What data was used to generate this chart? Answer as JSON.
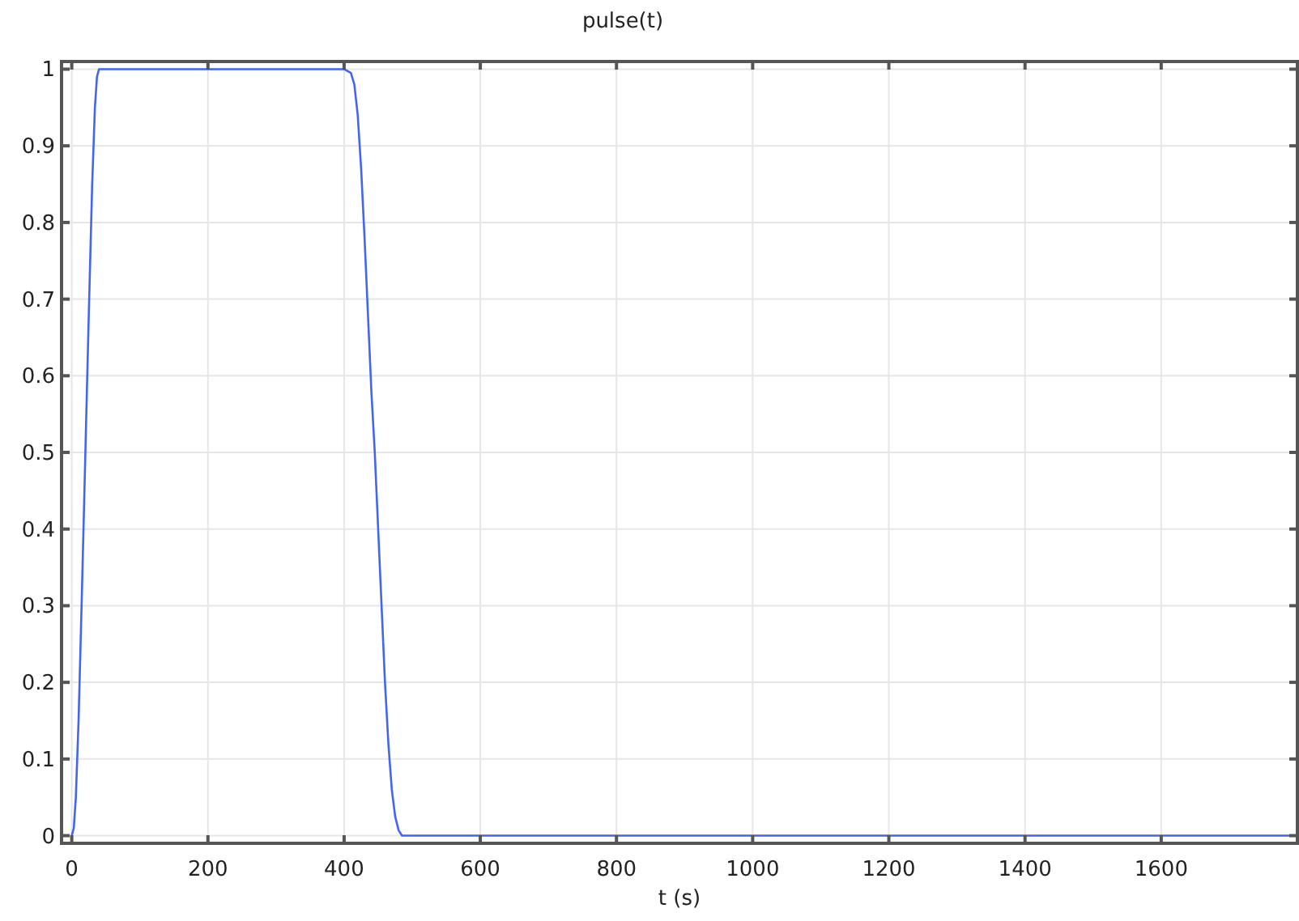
{
  "chart_data": {
    "type": "line",
    "title": "pulse(t)",
    "xlabel": "t (s)",
    "x": [
      0,
      3,
      6,
      10,
      15,
      20,
      25,
      30,
      34,
      37,
      40,
      400,
      410,
      415,
      420,
      425,
      430,
      435,
      440,
      445,
      450,
      455,
      460,
      465,
      470,
      475,
      480,
      485,
      1800
    ],
    "series": [
      {
        "color": "#4466ee",
        "values": [
          0,
          0.01,
          0.05,
          0.15,
          0.32,
          0.5,
          0.68,
          0.85,
          0.95,
          0.99,
          1,
          1,
          0.995,
          0.98,
          0.94,
          0.87,
          0.78,
          0.68,
          0.58,
          0.5,
          0.4,
          0.3,
          0.2,
          0.12,
          0.06,
          0.025,
          0.007,
          0,
          0
        ]
      }
    ],
    "xlim": [
      -15,
      1800
    ],
    "ylim": [
      -0.01,
      1.01
    ],
    "xticks": [
      0,
      200,
      400,
      600,
      800,
      1000,
      1200,
      1400,
      1600
    ],
    "yticks": [
      0,
      0.1,
      0.2,
      0.3,
      0.4,
      0.5,
      0.6,
      0.7,
      0.8,
      0.9,
      1
    ],
    "grid": true,
    "marker": "none",
    "line_style": "solid"
  }
}
